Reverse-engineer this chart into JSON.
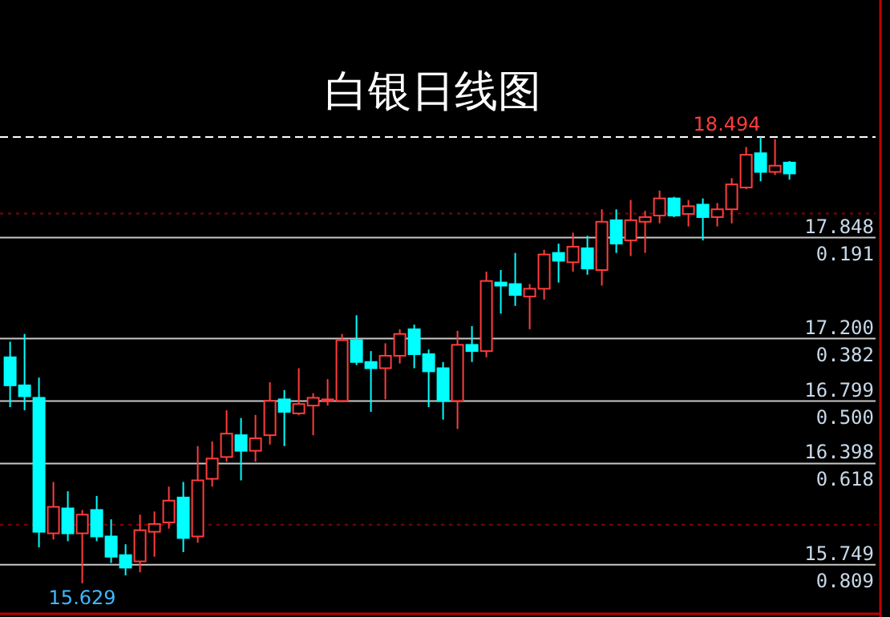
{
  "chart_data": {
    "type": "candlestick",
    "title": "白银日线图",
    "categories": [
      null,
      null,
      null,
      null,
      null,
      null,
      null,
      null,
      null,
      null,
      null,
      null,
      null,
      null,
      null,
      null,
      null,
      null,
      null,
      null,
      null,
      null,
      null,
      null,
      null,
      null,
      null,
      null,
      null,
      null,
      null,
      null,
      null,
      null,
      null,
      null,
      null,
      null,
      null,
      null,
      null,
      null,
      null,
      null,
      null,
      null,
      null,
      null,
      null,
      null,
      null,
      null,
      null,
      null,
      null
    ],
    "ohlc": [
      [
        17.08,
        17.18,
        16.76,
        16.9
      ],
      [
        16.9,
        17.23,
        16.74,
        16.83
      ],
      [
        16.82,
        16.95,
        15.86,
        15.96
      ],
      [
        15.95,
        16.28,
        15.91,
        16.12
      ],
      [
        16.11,
        16.22,
        15.9,
        15.95
      ],
      [
        15.95,
        16.1,
        15.629,
        16.07
      ],
      [
        16.1,
        16.19,
        15.9,
        15.93
      ],
      [
        15.93,
        16.04,
        15.76,
        15.8
      ],
      [
        15.81,
        15.88,
        15.68,
        15.73
      ],
      [
        15.77,
        16.07,
        15.7,
        15.97
      ],
      [
        15.96,
        16.09,
        15.8,
        16.01
      ],
      [
        16.02,
        16.25,
        15.98,
        16.16
      ],
      [
        16.18,
        16.28,
        15.83,
        15.92
      ],
      [
        15.93,
        16.51,
        15.89,
        16.29
      ],
      [
        16.3,
        16.54,
        16.25,
        16.43
      ],
      [
        16.44,
        16.74,
        16.41,
        16.59
      ],
      [
        16.58,
        16.69,
        16.29,
        16.48
      ],
      [
        16.48,
        16.71,
        16.41,
        16.56
      ],
      [
        16.58,
        16.92,
        16.52,
        16.8
      ],
      [
        16.81,
        16.87,
        16.51,
        16.73
      ],
      [
        16.72,
        17.01,
        16.71,
        16.78
      ],
      [
        16.77,
        16.85,
        16.58,
        16.82
      ],
      [
        16.8,
        16.94,
        16.77,
        16.81
      ],
      [
        16.8,
        17.23,
        16.8,
        17.19
      ],
      [
        17.19,
        17.35,
        17.03,
        17.05
      ],
      [
        17.05,
        17.12,
        16.73,
        17.01
      ],
      [
        17.01,
        17.17,
        16.81,
        17.09
      ],
      [
        17.09,
        17.26,
        17.04,
        17.23
      ],
      [
        17.26,
        17.29,
        17.01,
        17.1
      ],
      [
        17.1,
        17.13,
        16.76,
        16.99
      ],
      [
        17.01,
        17.05,
        16.68,
        16.8
      ],
      [
        16.8,
        17.25,
        16.62,
        17.16
      ],
      [
        17.16,
        17.28,
        17.05,
        17.12
      ],
      [
        17.12,
        17.63,
        17.08,
        17.57
      ],
      [
        17.56,
        17.64,
        17.36,
        17.54
      ],
      [
        17.55,
        17.75,
        17.41,
        17.48
      ],
      [
        17.47,
        17.55,
        17.26,
        17.52
      ],
      [
        17.52,
        17.77,
        17.45,
        17.74
      ],
      [
        17.75,
        17.81,
        17.56,
        17.7
      ],
      [
        17.69,
        17.88,
        17.63,
        17.79
      ],
      [
        17.78,
        17.86,
        17.61,
        17.65
      ],
      [
        17.64,
        18.03,
        17.54,
        17.95
      ],
      [
        17.96,
        18.03,
        17.75,
        17.81
      ],
      [
        17.83,
        18.09,
        17.73,
        17.96
      ],
      [
        17.95,
        18.02,
        17.75,
        17.98
      ],
      [
        17.99,
        18.15,
        17.94,
        18.1
      ],
      [
        18.1,
        18.11,
        17.98,
        17.99
      ],
      [
        18.0,
        18.09,
        17.92,
        18.05
      ],
      [
        18.06,
        18.1,
        17.83,
        17.98
      ],
      [
        17.98,
        18.07,
        17.92,
        18.03
      ],
      [
        18.03,
        18.23,
        17.94,
        18.19
      ],
      [
        18.17,
        18.43,
        18.16,
        18.38
      ],
      [
        18.39,
        18.494,
        18.21,
        18.27
      ],
      [
        18.27,
        18.48,
        18.25,
        18.31
      ],
      [
        18.33,
        18.34,
        18.22,
        18.26
      ]
    ],
    "ref_lines": [
      {
        "axis": "y",
        "value": 18.494,
        "color": "#ffffff",
        "line_style": "dashed"
      },
      {
        "axis": "y",
        "value": 18.003,
        "color": "#8b0000",
        "line_style": "dotted"
      },
      {
        "axis": "y",
        "value": 17.848,
        "label": "17.848",
        "color": "#c8c8c8"
      },
      {
        "axis": "y",
        "value": 17.2,
        "label": "17.200",
        "color": "#c8c8c8"
      },
      {
        "axis": "y",
        "value": 16.799,
        "label": "16.799",
        "color": "#c8c8c8"
      },
      {
        "axis": "y",
        "value": 16.398,
        "label": "16.398",
        "color": "#c8c8c8"
      },
      {
        "axis": "y",
        "value": 16.006,
        "color": "#8b0000",
        "line_style": "dotted"
      },
      {
        "axis": "y",
        "value": 15.749,
        "label": "15.749",
        "color": "#c8c8c8"
      }
    ],
    "annotations": [
      {
        "text": "0.191",
        "y": 17.848
      },
      {
        "text": "0.382",
        "y": 17.2
      },
      {
        "text": "0.500",
        "y": 16.799
      },
      {
        "text": "0.618",
        "y": 16.398
      },
      {
        "text": "0.809",
        "y": 15.749
      },
      {
        "text": "18.494",
        "y": 18.494
      },
      {
        "text": "15.629",
        "y": 15.629
      }
    ]
  }
}
